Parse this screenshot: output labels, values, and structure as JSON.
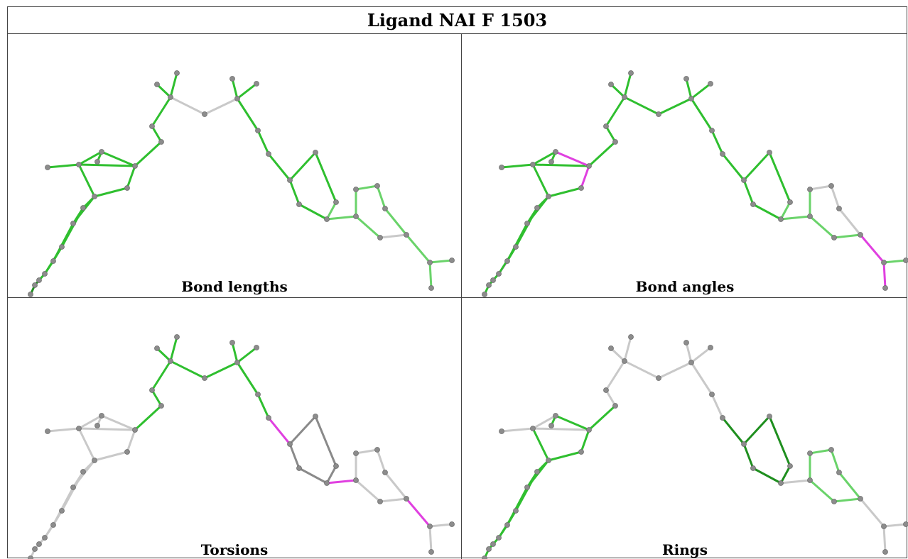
{
  "title": "Ligand NAI F 1503",
  "panels": [
    {
      "caption": "Bond lengths"
    },
    {
      "caption": "Bond angles"
    },
    {
      "caption": "Torsions"
    },
    {
      "caption": "Rings"
    }
  ],
  "colors": {
    "grey_bond": "#c9c9c9",
    "dark_grey_bond": "#8a8a8a",
    "green_bond": "#2fbf2f",
    "light_green_bond": "#6ad36a",
    "dark_green_bond": "#1f8f1f",
    "magenta_bond": "#e040e0",
    "atom": "#8c8c8c"
  }
}
